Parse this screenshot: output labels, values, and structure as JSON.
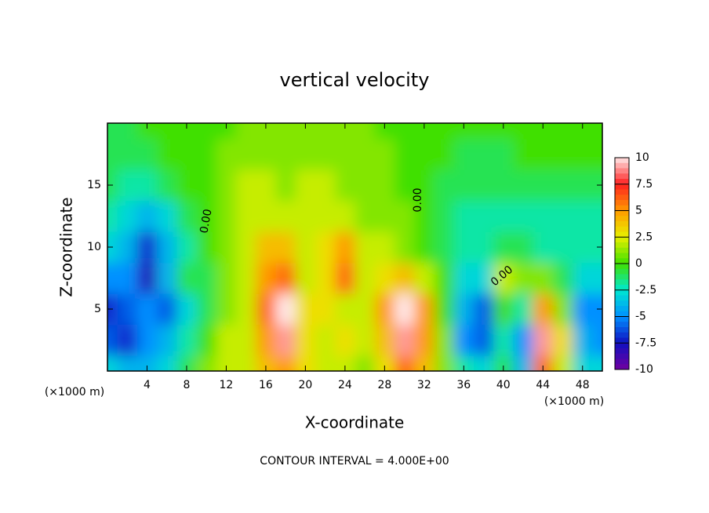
{
  "chart_data": {
    "type": "heatmap",
    "title": "vertical velocity",
    "xlabel": "X-coordinate",
    "ylabel": "Z-coordinate",
    "x_unit_label": "(×1000 m)",
    "annotation": "CONTOUR INTERVAL = 4.000E+00",
    "contour_label": "0.00",
    "xlim": [
      0,
      50
    ],
    "ylim": [
      0,
      20
    ],
    "xticks": [
      4,
      8,
      12,
      16,
      20,
      24,
      28,
      32,
      36,
      40,
      44,
      48
    ],
    "yticks": [
      5,
      10,
      15
    ],
    "x": [
      0,
      2,
      4,
      6,
      8,
      10,
      12,
      14,
      16,
      18,
      20,
      22,
      24,
      26,
      28,
      30,
      32,
      34,
      36,
      38,
      40,
      42,
      44,
      46,
      48,
      50
    ],
    "y": [
      0,
      2.5,
      5,
      7.5,
      10,
      12.5,
      15,
      17.5,
      20
    ],
    "z": [
      [
        -3,
        -4,
        -4,
        -3,
        -1,
        1,
        2,
        2,
        4,
        5,
        3,
        2,
        2,
        1,
        3,
        6,
        4,
        1,
        -2,
        -3,
        -1,
        -4,
        6,
        2,
        -3,
        -3
      ],
      [
        -6,
        -7,
        -5,
        -4,
        -2,
        0,
        2,
        2,
        5,
        9,
        3,
        2,
        3,
        2,
        4,
        9,
        5,
        1,
        -5,
        -6,
        -2,
        -5,
        9,
        3,
        -4,
        -5
      ],
      [
        -7,
        -6,
        -5,
        -6,
        -3,
        -1,
        1,
        2,
        6,
        10,
        3,
        3,
        2,
        2,
        5,
        10,
        5,
        0,
        -4,
        -6,
        0,
        -2,
        5,
        1,
        -5,
        -5
      ],
      [
        -5,
        -5,
        -8,
        -4,
        -1,
        -1,
        1,
        2,
        5,
        6,
        2,
        3,
        6,
        2,
        3,
        4,
        2,
        0,
        -3,
        -3,
        2,
        1,
        1,
        -1,
        -3,
        -3
      ],
      [
        -3,
        -4,
        -7,
        -4,
        -2,
        0,
        1,
        2,
        4,
        4,
        2,
        3,
        5,
        2,
        2,
        1,
        0,
        -1,
        -2,
        -2,
        -1,
        -1,
        -2,
        -2,
        -2,
        -2
      ],
      [
        -2,
        -3,
        -4,
        -3,
        -1,
        0,
        1,
        2,
        2,
        2,
        2,
        2,
        2,
        1,
        1,
        1,
        0,
        -1,
        -2,
        -2,
        -2,
        -2,
        -2,
        -2,
        -2,
        -2
      ],
      [
        -1,
        -2,
        -2,
        -1,
        0,
        0,
        1,
        2,
        2,
        1,
        2,
        2,
        1,
        1,
        1,
        0,
        0,
        -1,
        -1,
        -1,
        -1,
        -1,
        -1,
        -1,
        -1,
        -1
      ],
      [
        -1,
        -1,
        -1,
        0,
        0,
        0,
        1,
        1,
        1,
        1,
        1,
        1,
        1,
        1,
        1,
        0,
        0,
        0,
        -1,
        -1,
        -1,
        0,
        0,
        0,
        0,
        0
      ],
      [
        -1,
        -1,
        0,
        0,
        0,
        0,
        0,
        1,
        1,
        1,
        1,
        1,
        1,
        1,
        0,
        0,
        0,
        0,
        0,
        0,
        0,
        0,
        0,
        0,
        0,
        0
      ]
    ],
    "colorbar_ticks": [
      10,
      7.5,
      5,
      2.5,
      0,
      -2.5,
      -5,
      -7.5,
      -10
    ],
    "colorbar_colors": [
      "#ffe8e8",
      "#ff2020",
      "#ff9a00",
      "#e8f000",
      "#40e000",
      "#00e8d0",
      "#0090ff",
      "#1010c0",
      "#7000a0"
    ]
  }
}
